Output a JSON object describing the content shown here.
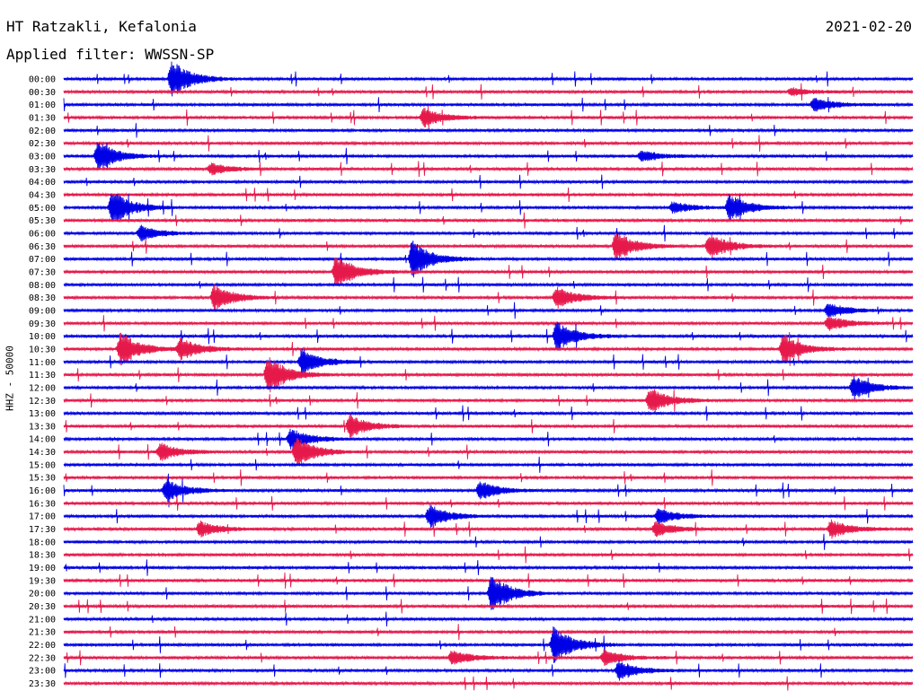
{
  "header": {
    "station": "HT Ratzakli, Kefalonia",
    "date": "2021-02-20",
    "filter_label": "Applied filter:",
    "filter_value": "WWSSN-SP"
  },
  "chart_data": {
    "type": "line",
    "ylabel": "HHZ - 50000",
    "tick_labels": [
      "00:00",
      "00:30",
      "01:00",
      "01:30",
      "02:00",
      "02:30",
      "03:00",
      "03:30",
      "04:00",
      "04:30",
      "05:00",
      "05:30",
      "06:00",
      "06:30",
      "07:00",
      "07:30",
      "08:00",
      "08:30",
      "09:00",
      "09:30",
      "10:00",
      "10:30",
      "11:00",
      "11:30",
      "12:00",
      "12:30",
      "13:00",
      "13:30",
      "14:00",
      "14:30",
      "15:00",
      "15:30",
      "16:00",
      "16:30",
      "17:00",
      "17:30",
      "18:00",
      "18:30",
      "19:00",
      "19:30",
      "20:00",
      "20:30",
      "21:00",
      "21:30",
      "22:00",
      "22:30",
      "23:00",
      "23:30"
    ],
    "colors": [
      "#0000e6",
      "#e6194b"
    ],
    "trace_minutes": 30,
    "events": [
      {
        "trace": 0,
        "t": 3.8,
        "amp": 1.0
      },
      {
        "trace": 1,
        "t": 25.7,
        "amp": 0.2
      },
      {
        "trace": 2,
        "t": 26.5,
        "amp": 0.35
      },
      {
        "trace": 3,
        "t": 12.7,
        "amp": 0.5
      },
      {
        "trace": 6,
        "t": 1.2,
        "amp": 0.8
      },
      {
        "trace": 6,
        "t": 20.4,
        "amp": 0.3
      },
      {
        "trace": 7,
        "t": 5.2,
        "amp": 0.3
      },
      {
        "trace": 10,
        "t": 1.7,
        "amp": 0.9
      },
      {
        "trace": 10,
        "t": 21.5,
        "amp": 0.3
      },
      {
        "trace": 10,
        "t": 23.5,
        "amp": 0.7
      },
      {
        "trace": 12,
        "t": 2.7,
        "amp": 0.4
      },
      {
        "trace": 13,
        "t": 19.5,
        "amp": 0.8
      },
      {
        "trace": 13,
        "t": 22.8,
        "amp": 0.7
      },
      {
        "trace": 14,
        "t": 12.3,
        "amp": 1.0
      },
      {
        "trace": 15,
        "t": 9.6,
        "amp": 0.9
      },
      {
        "trace": 17,
        "t": 5.3,
        "amp": 0.7
      },
      {
        "trace": 17,
        "t": 17.4,
        "amp": 0.6
      },
      {
        "trace": 18,
        "t": 27.0,
        "amp": 0.4
      },
      {
        "trace": 19,
        "t": 27.0,
        "amp": 0.4
      },
      {
        "trace": 20,
        "t": 17.4,
        "amp": 0.8
      },
      {
        "trace": 21,
        "t": 2.0,
        "amp": 0.9
      },
      {
        "trace": 21,
        "t": 4.1,
        "amp": 0.6
      },
      {
        "trace": 21,
        "t": 25.4,
        "amp": 0.8
      },
      {
        "trace": 22,
        "t": 8.4,
        "amp": 0.7
      },
      {
        "trace": 23,
        "t": 7.2,
        "amp": 1.0
      },
      {
        "trace": 24,
        "t": 27.9,
        "amp": 0.6
      },
      {
        "trace": 25,
        "t": 20.7,
        "amp": 0.7
      },
      {
        "trace": 27,
        "t": 10.1,
        "amp": 0.6
      },
      {
        "trace": 28,
        "t": 8.0,
        "amp": 0.6
      },
      {
        "trace": 29,
        "t": 3.4,
        "amp": 0.5
      },
      {
        "trace": 29,
        "t": 8.2,
        "amp": 0.8
      },
      {
        "trace": 32,
        "t": 3.6,
        "amp": 0.6
      },
      {
        "trace": 32,
        "t": 14.7,
        "amp": 0.5
      },
      {
        "trace": 34,
        "t": 12.9,
        "amp": 0.6
      },
      {
        "trace": 34,
        "t": 21.0,
        "amp": 0.4
      },
      {
        "trace": 35,
        "t": 4.8,
        "amp": 0.4
      },
      {
        "trace": 35,
        "t": 20.9,
        "amp": 0.4
      },
      {
        "trace": 35,
        "t": 27.1,
        "amp": 0.5
      },
      {
        "trace": 40,
        "t": 15.1,
        "amp": 1.0
      },
      {
        "trace": 44,
        "t": 17.3,
        "amp": 1.0
      },
      {
        "trace": 45,
        "t": 13.7,
        "amp": 0.4
      },
      {
        "trace": 45,
        "t": 19.1,
        "amp": 0.4
      },
      {
        "trace": 46,
        "t": 19.6,
        "amp": 0.5
      }
    ]
  }
}
